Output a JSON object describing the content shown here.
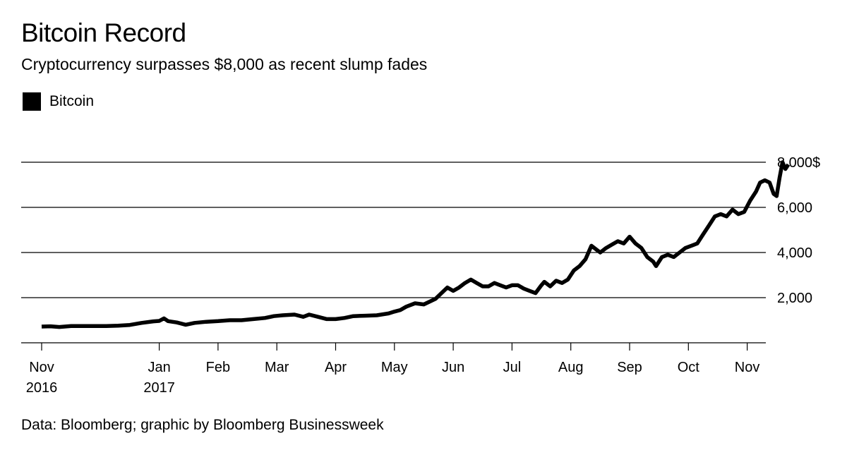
{
  "chart_data": {
    "type": "line",
    "title": "Bitcoin Record",
    "subtitle": "Cryptocurrency surpasses $8,000 as recent slump fades",
    "source": "Data: Bloomberg; graphic by Bloomberg Businessweek",
    "legend": [
      {
        "name": "Bitcoin",
        "color": "#000000"
      }
    ],
    "legend_position": "top-left",
    "xlabel": "",
    "ylabel": "",
    "ylim": [
      0,
      8000
    ],
    "grid": true,
    "yticks": [
      {
        "value": 8000,
        "label": "8,000$"
      },
      {
        "value": 6000,
        "label": "6,000"
      },
      {
        "value": 4000,
        "label": "4,000"
      },
      {
        "value": 2000,
        "label": "2,000"
      }
    ],
    "xlim": [
      0,
      12.55
    ],
    "xticks": [
      {
        "value": 0,
        "label": "Nov",
        "label2": "2016"
      },
      {
        "value": 2,
        "label": "Jan",
        "label2": "2017"
      },
      {
        "value": 3,
        "label": "Feb",
        "label2": ""
      },
      {
        "value": 4,
        "label": "Mar",
        "label2": ""
      },
      {
        "value": 5,
        "label": "Apr",
        "label2": ""
      },
      {
        "value": 6,
        "label": "May",
        "label2": ""
      },
      {
        "value": 7,
        "label": "Jun",
        "label2": ""
      },
      {
        "value": 8,
        "label": "Jul",
        "label2": ""
      },
      {
        "value": 9,
        "label": "Aug",
        "label2": ""
      },
      {
        "value": 10,
        "label": "Sep",
        "label2": ""
      },
      {
        "value": 11,
        "label": "Oct",
        "label2": ""
      },
      {
        "value": 12,
        "label": "Nov",
        "label2": ""
      }
    ],
    "x_unit": "months since Nov 1, 2016",
    "series": [
      {
        "name": "Bitcoin",
        "color": "#000000",
        "points": [
          [
            0.0,
            720
          ],
          [
            0.15,
            730
          ],
          [
            0.3,
            700
          ],
          [
            0.5,
            740
          ],
          [
            0.7,
            745
          ],
          [
            0.9,
            745
          ],
          [
            1.1,
            745
          ],
          [
            1.3,
            760
          ],
          [
            1.5,
            790
          ],
          [
            1.7,
            880
          ],
          [
            1.9,
            950
          ],
          [
            2.0,
            970
          ],
          [
            2.08,
            1080
          ],
          [
            2.15,
            960
          ],
          [
            2.3,
            900
          ],
          [
            2.45,
            800
          ],
          [
            2.6,
            880
          ],
          [
            2.8,
            930
          ],
          [
            3.0,
            960
          ],
          [
            3.2,
            1000
          ],
          [
            3.4,
            1000
          ],
          [
            3.6,
            1050
          ],
          [
            3.8,
            1100
          ],
          [
            3.95,
            1180
          ],
          [
            4.1,
            1220
          ],
          [
            4.3,
            1250
          ],
          [
            4.45,
            1150
          ],
          [
            4.55,
            1250
          ],
          [
            4.7,
            1150
          ],
          [
            4.85,
            1050
          ],
          [
            5.0,
            1050
          ],
          [
            5.15,
            1100
          ],
          [
            5.3,
            1180
          ],
          [
            5.5,
            1200
          ],
          [
            5.7,
            1220
          ],
          [
            5.9,
            1300
          ],
          [
            6.0,
            1380
          ],
          [
            6.1,
            1450
          ],
          [
            6.2,
            1600
          ],
          [
            6.35,
            1750
          ],
          [
            6.5,
            1700
          ],
          [
            6.7,
            1950
          ],
          [
            6.8,
            2200
          ],
          [
            6.9,
            2450
          ],
          [
            7.0,
            2300
          ],
          [
            7.1,
            2450
          ],
          [
            7.2,
            2650
          ],
          [
            7.3,
            2800
          ],
          [
            7.4,
            2650
          ],
          [
            7.5,
            2500
          ],
          [
            7.6,
            2500
          ],
          [
            7.7,
            2650
          ],
          [
            7.8,
            2550
          ],
          [
            7.9,
            2450
          ],
          [
            8.0,
            2550
          ],
          [
            8.1,
            2550
          ],
          [
            8.2,
            2400
          ],
          [
            8.3,
            2300
          ],
          [
            8.4,
            2200
          ],
          [
            8.5,
            2550
          ],
          [
            8.55,
            2700
          ],
          [
            8.65,
            2500
          ],
          [
            8.75,
            2750
          ],
          [
            8.85,
            2650
          ],
          [
            8.95,
            2800
          ],
          [
            9.05,
            3200
          ],
          [
            9.15,
            3400
          ],
          [
            9.25,
            3700
          ],
          [
            9.35,
            4300
          ],
          [
            9.45,
            4100
          ],
          [
            9.5,
            4000
          ],
          [
            9.6,
            4200
          ],
          [
            9.7,
            4350
          ],
          [
            9.8,
            4500
          ],
          [
            9.9,
            4400
          ],
          [
            10.0,
            4700
          ],
          [
            10.1,
            4400
          ],
          [
            10.2,
            4200
          ],
          [
            10.3,
            3800
          ],
          [
            10.4,
            3600
          ],
          [
            10.45,
            3400
          ],
          [
            10.55,
            3800
          ],
          [
            10.65,
            3900
          ],
          [
            10.75,
            3800
          ],
          [
            10.85,
            4000
          ],
          [
            10.95,
            4200
          ],
          [
            11.05,
            4300
          ],
          [
            11.15,
            4400
          ],
          [
            11.25,
            4800
          ],
          [
            11.35,
            5200
          ],
          [
            11.45,
            5600
          ],
          [
            11.55,
            5700
          ],
          [
            11.65,
            5600
          ],
          [
            11.75,
            5900
          ],
          [
            11.85,
            5700
          ],
          [
            11.95,
            5800
          ],
          [
            12.05,
            6300
          ],
          [
            12.15,
            6700
          ],
          [
            12.22,
            7100
          ],
          [
            12.3,
            7200
          ],
          [
            12.38,
            7100
          ],
          [
            12.45,
            6600
          ],
          [
            12.5,
            6500
          ],
          [
            12.55,
            7300
          ],
          [
            12.6,
            8000
          ],
          [
            12.65,
            7700
          ],
          [
            12.7,
            7900
          ]
        ]
      }
    ]
  }
}
